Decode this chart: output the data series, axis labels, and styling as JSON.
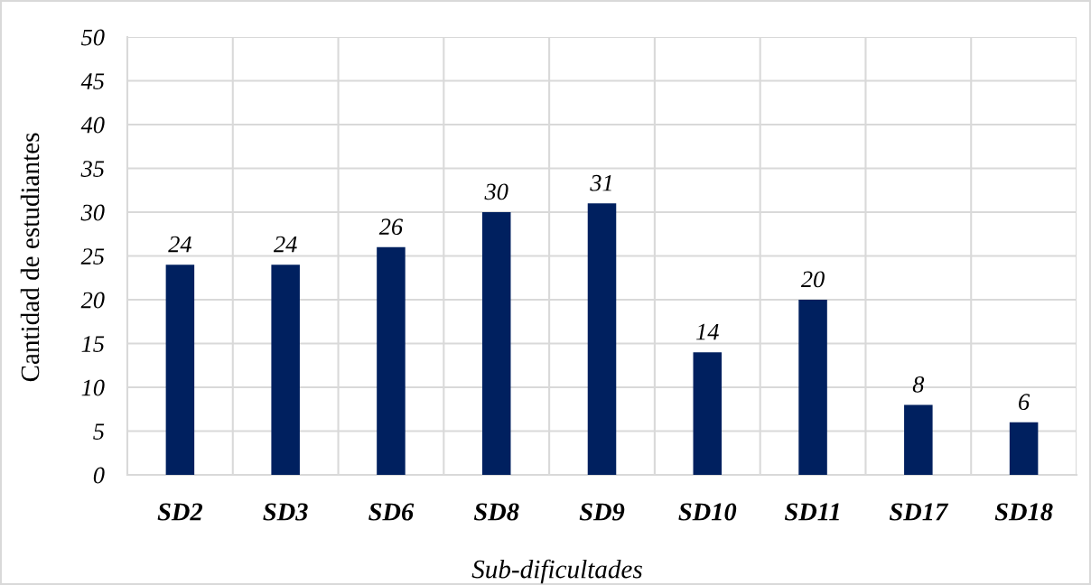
{
  "chart_data": {
    "type": "bar",
    "xlabel": "Sub-dificultades",
    "ylabel": "Cantidad de estudiantes",
    "categories": [
      "SD2",
      "SD3",
      "SD6",
      "SD8",
      "SD9",
      "SD10",
      "SD11",
      "SD17",
      "SD18"
    ],
    "values": [
      24,
      24,
      26,
      30,
      31,
      14,
      20,
      8,
      6
    ],
    "color": "#00205f",
    "ylim": [
      0,
      50
    ],
    "yticks": [
      0,
      5,
      10,
      15,
      20,
      25,
      30,
      35,
      40,
      45,
      50
    ],
    "grid": true,
    "data_labels": true
  }
}
